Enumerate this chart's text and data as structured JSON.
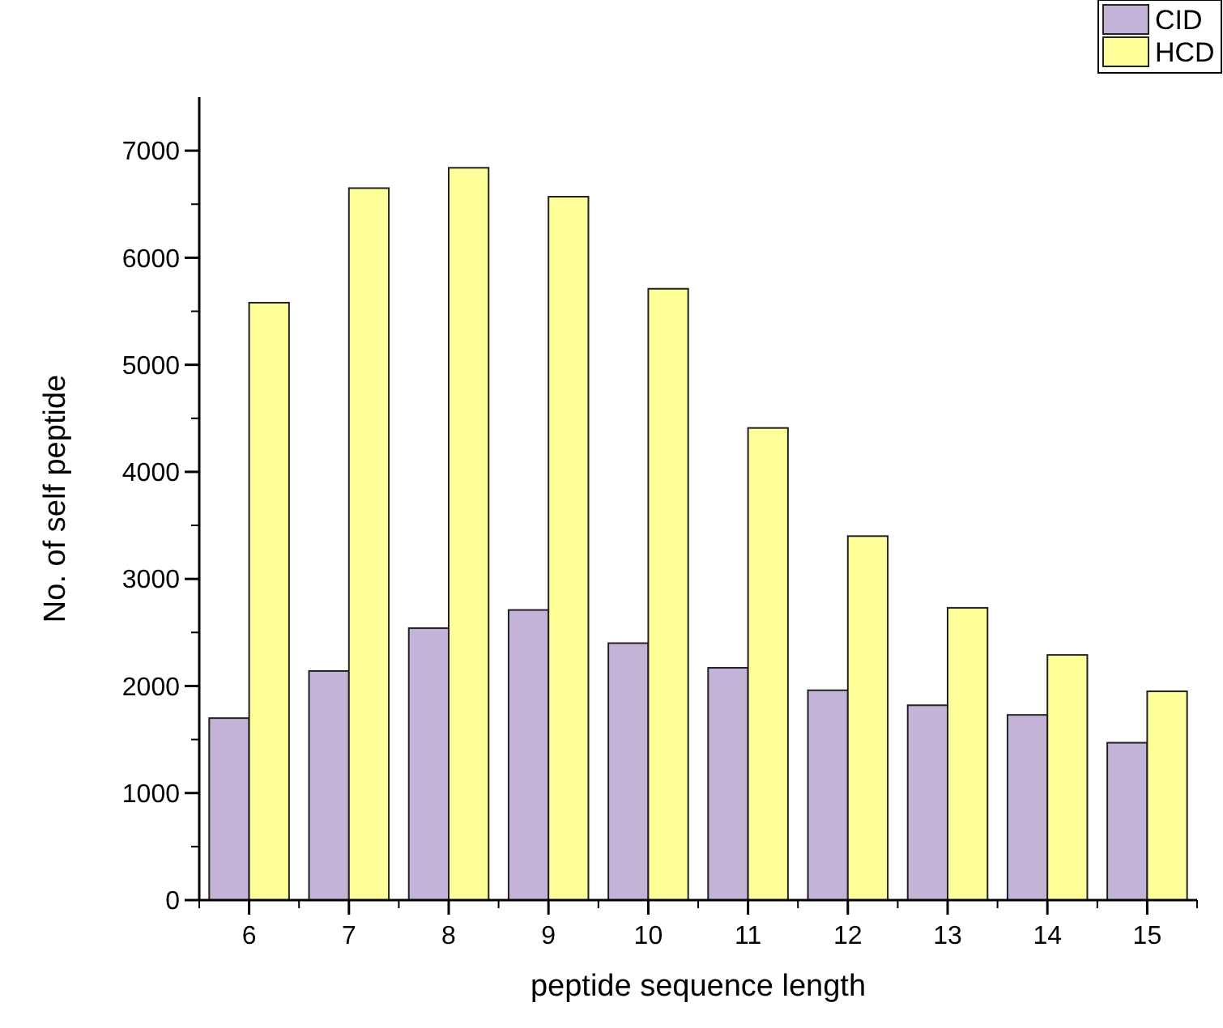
{
  "chart_data": {
    "type": "bar",
    "xlabel": "peptide sequence length",
    "ylabel": "No. of self peptide",
    "categories": [
      "6",
      "7",
      "8",
      "9",
      "10",
      "11",
      "12",
      "13",
      "14",
      "15"
    ],
    "series": [
      {
        "name": "CID",
        "color": "#c3b3d6",
        "values": [
          1700,
          2140,
          2540,
          2710,
          2400,
          2170,
          1960,
          1820,
          1730,
          1470
        ]
      },
      {
        "name": "HCD",
        "color": "#ffff99",
        "values": [
          5580,
          6650,
          6840,
          6570,
          5710,
          4410,
          3400,
          2730,
          2290,
          1950
        ]
      }
    ],
    "ylim": [
      0,
      7500
    ],
    "yticks": [
      0,
      {
        "value": 500,
        "label": null
      },
      1000,
      {
        "value": 1500,
        "label": null
      },
      2000,
      {
        "value": 2500,
        "label": null
      },
      3000,
      {
        "value": 3500,
        "label": null
      },
      4000,
      {
        "value": 4500,
        "label": null
      },
      5000,
      {
        "value": 5500,
        "label": null
      },
      6000,
      {
        "value": 6500,
        "label": null
      },
      7000
    ],
    "legend": "top right",
    "grid": false
  }
}
